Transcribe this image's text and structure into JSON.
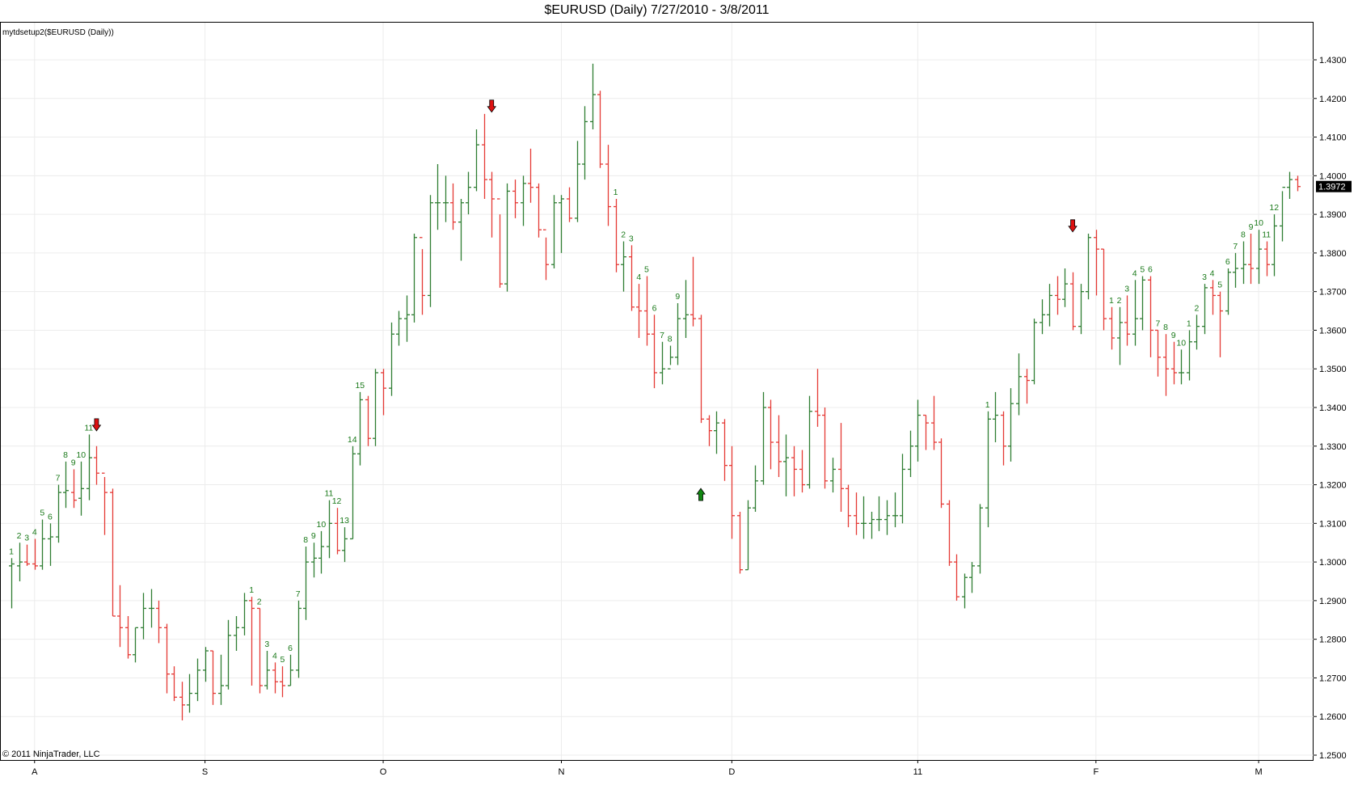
{
  "chart_data": {
    "type": "ohlc-bar",
    "title": "$EURUSD (Daily)  7/27/2010 - 3/8/2011",
    "indicator_label": "mytdsetup2($EURUSD (Daily))",
    "copyright": "© 2011 NinjaTrader, LLC",
    "last_price_label": "1.3972",
    "ylim": [
      1.245,
      1.435
    ],
    "y_ticks": [
      "1.2500",
      "1.2600",
      "1.2700",
      "1.2800",
      "1.2900",
      "1.3000",
      "1.3100",
      "1.3200",
      "1.3300",
      "1.3400",
      "1.3500",
      "1.3600",
      "1.3700",
      "1.3800",
      "1.3900",
      "1.4000",
      "1.4100",
      "1.4200",
      "1.4300"
    ],
    "x_ticks": [
      {
        "label": "A",
        "index": 3
      },
      {
        "label": "S",
        "index": 25
      },
      {
        "label": "O",
        "index": 48
      },
      {
        "label": "N",
        "index": 71
      },
      {
        "label": "D",
        "index": 93
      },
      {
        "label": "11",
        "index": 117
      },
      {
        "label": "F",
        "index": 140
      },
      {
        "label": "M",
        "index": 161
      }
    ],
    "bars": [
      [
        1.299,
        1.301,
        1.288,
        1.2995
      ],
      [
        1.299,
        1.305,
        1.295,
        1.3
      ],
      [
        1.3,
        1.3045,
        1.299,
        1.2995
      ],
      [
        1.2995,
        1.306,
        1.298,
        1.299
      ],
      [
        1.299,
        1.311,
        1.298,
        1.306
      ],
      [
        1.306,
        1.31,
        1.299,
        1.3065
      ],
      [
        1.3065,
        1.32,
        1.305,
        1.318
      ],
      [
        1.318,
        1.326,
        1.314,
        1.3185
      ],
      [
        1.318,
        1.324,
        1.314,
        1.316
      ],
      [
        1.3165,
        1.326,
        1.312,
        1.319
      ],
      [
        1.319,
        1.333,
        1.316,
        1.327
      ],
      [
        1.327,
        1.33,
        1.32,
        1.323
      ],
      [
        1.323,
        1.322,
        1.307,
        1.318
      ],
      [
        1.318,
        1.319,
        1.286,
        1.286
      ],
      [
        1.286,
        1.294,
        1.278,
        1.283
      ],
      [
        1.283,
        1.286,
        1.275,
        1.276
      ],
      [
        1.276,
        1.283,
        1.274,
        1.283
      ],
      [
        1.283,
        1.292,
        1.28,
        1.288
      ],
      [
        1.288,
        1.293,
        1.283,
        1.288
      ],
      [
        1.288,
        1.29,
        1.279,
        1.283
      ],
      [
        1.283,
        1.284,
        1.266,
        1.271
      ],
      [
        1.271,
        1.273,
        1.264,
        1.265
      ],
      [
        1.265,
        1.269,
        1.259,
        1.263
      ],
      [
        1.263,
        1.271,
        1.261,
        1.266
      ],
      [
        1.266,
        1.275,
        1.264,
        1.272
      ],
      [
        1.272,
        1.278,
        1.269,
        1.277
      ],
      [
        1.277,
        1.277,
        1.263,
        1.266
      ],
      [
        1.266,
        1.276,
        1.263,
        1.268
      ],
      [
        1.268,
        1.285,
        1.267,
        1.281
      ],
      [
        1.281,
        1.286,
        1.277,
        1.283
      ],
      [
        1.283,
        1.292,
        1.281,
        1.29
      ],
      [
        1.29,
        1.291,
        1.268,
        1.288
      ],
      [
        1.288,
        1.288,
        1.266,
        1.268
      ],
      [
        1.268,
        1.277,
        1.267,
        1.272
      ],
      [
        1.272,
        1.274,
        1.266,
        1.269
      ],
      [
        1.269,
        1.273,
        1.265,
        1.268
      ],
      [
        1.268,
        1.276,
        1.268,
        1.272
      ],
      [
        1.272,
        1.29,
        1.27,
        1.288
      ],
      [
        1.288,
        1.304,
        1.285,
        1.3
      ],
      [
        1.3,
        1.305,
        1.296,
        1.301
      ],
      [
        1.301,
        1.308,
        1.297,
        1.304
      ],
      [
        1.304,
        1.316,
        1.301,
        1.31
      ],
      [
        1.31,
        1.314,
        1.302,
        1.303
      ],
      [
        1.303,
        1.309,
        1.3,
        1.306
      ],
      [
        1.306,
        1.33,
        1.306,
        1.328
      ],
      [
        1.328,
        1.344,
        1.325,
        1.342
      ],
      [
        1.342,
        1.343,
        1.33,
        1.332
      ],
      [
        1.332,
        1.35,
        1.33,
        1.349
      ],
      [
        1.349,
        1.35,
        1.338,
        1.345
      ],
      [
        1.345,
        1.362,
        1.343,
        1.359
      ],
      [
        1.359,
        1.365,
        1.356,
        1.363
      ],
      [
        1.363,
        1.369,
        1.357,
        1.364
      ],
      [
        1.364,
        1.385,
        1.362,
        1.384
      ],
      [
        1.384,
        1.381,
        1.364,
        1.369
      ],
      [
        1.369,
        1.395,
        1.366,
        1.393
      ],
      [
        1.393,
        1.403,
        1.386,
        1.393
      ],
      [
        1.393,
        1.4,
        1.388,
        1.393
      ],
      [
        1.393,
        1.398,
        1.386,
        1.388
      ],
      [
        1.388,
        1.394,
        1.378,
        1.393
      ],
      [
        1.393,
        1.401,
        1.39,
        1.397
      ],
      [
        1.397,
        1.412,
        1.396,
        1.408
      ],
      [
        1.408,
        1.416,
        1.394,
        1.399
      ],
      [
        1.399,
        1.401,
        1.384,
        1.394
      ],
      [
        1.394,
        1.39,
        1.371,
        1.372
      ],
      [
        1.372,
        1.398,
        1.37,
        1.396
      ],
      [
        1.396,
        1.399,
        1.389,
        1.393
      ],
      [
        1.393,
        1.4,
        1.387,
        1.398
      ],
      [
        1.398,
        1.407,
        1.393,
        1.397
      ],
      [
        1.397,
        1.398,
        1.384,
        1.386
      ],
      [
        1.386,
        1.384,
        1.373,
        1.377
      ],
      [
        1.377,
        1.395,
        1.376,
        1.393
      ],
      [
        1.393,
        1.395,
        1.38,
        1.394
      ],
      [
        1.394,
        1.397,
        1.388,
        1.389
      ],
      [
        1.389,
        1.409,
        1.388,
        1.403
      ],
      [
        1.403,
        1.418,
        1.399,
        1.414
      ],
      [
        1.414,
        1.429,
        1.412,
        1.421
      ],
      [
        1.421,
        1.422,
        1.402,
        1.403
      ],
      [
        1.403,
        1.408,
        1.387,
        1.392
      ],
      [
        1.392,
        1.394,
        1.375,
        1.377
      ],
      [
        1.377,
        1.383,
        1.37,
        1.379
      ],
      [
        1.379,
        1.382,
        1.365,
        1.366
      ],
      [
        1.366,
        1.372,
        1.358,
        1.365
      ],
      [
        1.365,
        1.374,
        1.356,
        1.359
      ],
      [
        1.359,
        1.364,
        1.345,
        1.349
      ],
      [
        1.349,
        1.357,
        1.346,
        1.35
      ],
      [
        1.35,
        1.356,
        1.351,
        1.353
      ],
      [
        1.353,
        1.367,
        1.351,
        1.363
      ],
      [
        1.363,
        1.373,
        1.358,
        1.364
      ],
      [
        1.364,
        1.379,
        1.361,
        1.363
      ],
      [
        1.363,
        1.364,
        1.336,
        1.337
      ],
      [
        1.337,
        1.338,
        1.33,
        1.334
      ],
      [
        1.334,
        1.339,
        1.328,
        1.336
      ],
      [
        1.336,
        1.337,
        1.321,
        1.325
      ],
      [
        1.325,
        1.33,
        1.306,
        1.312
      ],
      [
        1.312,
        1.313,
        1.297,
        1.298
      ],
      [
        1.298,
        1.316,
        1.298,
        1.314
      ],
      [
        1.314,
        1.325,
        1.313,
        1.321
      ],
      [
        1.321,
        1.344,
        1.32,
        1.34
      ],
      [
        1.34,
        1.342,
        1.324,
        1.331
      ],
      [
        1.331,
        1.338,
        1.322,
        1.326
      ],
      [
        1.326,
        1.333,
        1.317,
        1.327
      ],
      [
        1.327,
        1.33,
        1.317,
        1.324
      ],
      [
        1.324,
        1.329,
        1.318,
        1.32
      ],
      [
        1.32,
        1.343,
        1.319,
        1.339
      ],
      [
        1.339,
        1.35,
        1.335,
        1.338
      ],
      [
        1.338,
        1.34,
        1.319,
        1.321
      ],
      [
        1.321,
        1.327,
        1.318,
        1.324
      ],
      [
        1.324,
        1.336,
        1.313,
        1.319
      ],
      [
        1.319,
        1.32,
        1.309,
        1.312
      ],
      [
        1.312,
        1.318,
        1.307,
        1.31
      ],
      [
        1.31,
        1.317,
        1.306,
        1.31
      ],
      [
        1.31,
        1.313,
        1.306,
        1.311
      ],
      [
        1.311,
        1.317,
        1.308,
        1.311
      ],
      [
        1.311,
        1.316,
        1.307,
        1.312
      ],
      [
        1.312,
        1.318,
        1.309,
        1.312
      ],
      [
        1.312,
        1.328,
        1.31,
        1.324
      ],
      [
        1.324,
        1.334,
        1.322,
        1.33
      ],
      [
        1.33,
        1.342,
        1.326,
        1.338
      ],
      [
        1.338,
        1.338,
        1.329,
        1.336
      ],
      [
        1.336,
        1.343,
        1.329,
        1.331
      ],
      [
        1.331,
        1.332,
        1.314,
        1.315
      ],
      [
        1.315,
        1.316,
        1.299,
        1.3
      ],
      [
        1.3,
        1.302,
        1.29,
        1.291
      ],
      [
        1.291,
        1.297,
        1.288,
        1.296
      ],
      [
        1.296,
        1.3,
        1.292,
        1.299
      ],
      [
        1.299,
        1.315,
        1.297,
        1.314
      ],
      [
        1.314,
        1.339,
        1.309,
        1.337
      ],
      [
        1.337,
        1.344,
        1.331,
        1.338
      ],
      [
        1.338,
        1.339,
        1.325,
        1.33
      ],
      [
        1.33,
        1.345,
        1.326,
        1.341
      ],
      [
        1.341,
        1.354,
        1.338,
        1.348
      ],
      [
        1.348,
        1.35,
        1.341,
        1.347
      ],
      [
        1.347,
        1.363,
        1.346,
        1.362
      ],
      [
        1.362,
        1.368,
        1.359,
        1.364
      ],
      [
        1.364,
        1.372,
        1.361,
        1.369
      ],
      [
        1.369,
        1.374,
        1.364,
        1.368
      ],
      [
        1.368,
        1.376,
        1.366,
        1.372
      ],
      [
        1.372,
        1.375,
        1.36,
        1.361
      ],
      [
        1.361,
        1.372,
        1.359,
        1.37
      ],
      [
        1.37,
        1.385,
        1.368,
        1.384
      ],
      [
        1.384,
        1.386,
        1.369,
        1.381
      ],
      [
        1.381,
        1.381,
        1.36,
        1.363
      ],
      [
        1.363,
        1.366,
        1.355,
        1.358
      ],
      [
        1.358,
        1.366,
        1.351,
        1.362
      ],
      [
        1.362,
        1.369,
        1.356,
        1.359
      ],
      [
        1.359,
        1.373,
        1.356,
        1.363
      ],
      [
        1.363,
        1.374,
        1.36,
        1.373
      ],
      [
        1.373,
        1.374,
        1.353,
        1.36
      ],
      [
        1.36,
        1.36,
        1.348,
        1.353
      ],
      [
        1.353,
        1.359,
        1.343,
        1.35
      ],
      [
        1.35,
        1.357,
        1.346,
        1.349
      ],
      [
        1.349,
        1.355,
        1.346,
        1.349
      ],
      [
        1.349,
        1.36,
        1.347,
        1.357
      ],
      [
        1.357,
        1.364,
        1.355,
        1.361
      ],
      [
        1.361,
        1.372,
        1.359,
        1.371
      ],
      [
        1.371,
        1.373,
        1.364,
        1.369
      ],
      [
        1.369,
        1.37,
        1.353,
        1.365
      ],
      [
        1.365,
        1.376,
        1.364,
        1.375
      ],
      [
        1.375,
        1.38,
        1.371,
        1.376
      ],
      [
        1.376,
        1.383,
        1.372,
        1.377
      ],
      [
        1.377,
        1.385,
        1.372,
        1.376
      ],
      [
        1.376,
        1.386,
        1.372,
        1.381
      ],
      [
        1.381,
        1.383,
        1.374,
        1.377
      ],
      [
        1.377,
        1.39,
        1.374,
        1.387
      ],
      [
        1.387,
        1.396,
        1.383,
        1.397
      ],
      [
        1.397,
        1.401,
        1.394,
        1.399
      ],
      [
        1.399,
        1.4,
        1.396,
        1.3972
      ]
    ],
    "setup_labels": [
      {
        "text": "1",
        "index": 0
      },
      {
        "text": "2",
        "index": 1
      },
      {
        "text": "3",
        "index": 2
      },
      {
        "text": "4",
        "index": 3
      },
      {
        "text": "5",
        "index": 4
      },
      {
        "text": "6",
        "index": 5
      },
      {
        "text": "7",
        "index": 6
      },
      {
        "text": "8",
        "index": 7
      },
      {
        "text": "9",
        "index": 8
      },
      {
        "text": "10",
        "index": 9
      },
      {
        "text": "11",
        "index": 10
      },
      {
        "text": "1",
        "index": 31
      },
      {
        "text": "2",
        "index": 32
      },
      {
        "text": "3",
        "index": 33
      },
      {
        "text": "4",
        "index": 34
      },
      {
        "text": "5",
        "index": 35
      },
      {
        "text": "6",
        "index": 36
      },
      {
        "text": "7",
        "index": 37
      },
      {
        "text": "8",
        "index": 38
      },
      {
        "text": "9",
        "index": 39
      },
      {
        "text": "10",
        "index": 40
      },
      {
        "text": "11",
        "index": 41
      },
      {
        "text": "12",
        "index": 42
      },
      {
        "text": "13",
        "index": 43
      },
      {
        "text": "14",
        "index": 44
      },
      {
        "text": "15",
        "index": 45
      },
      {
        "text": "1",
        "index": 78
      },
      {
        "text": "2",
        "index": 79
      },
      {
        "text": "3",
        "index": 80
      },
      {
        "text": "4",
        "index": 81
      },
      {
        "text": "5",
        "index": 82
      },
      {
        "text": "6",
        "index": 83
      },
      {
        "text": "7",
        "index": 84
      },
      {
        "text": "8",
        "index": 85
      },
      {
        "text": "9",
        "index": 86
      },
      {
        "text": "1",
        "index": 126
      },
      {
        "text": "1",
        "index": 142
      },
      {
        "text": "2",
        "index": 143
      },
      {
        "text": "3",
        "index": 144
      },
      {
        "text": "4",
        "index": 145
      },
      {
        "text": "5",
        "index": 146
      },
      {
        "text": "6",
        "index": 147
      },
      {
        "text": "7",
        "index": 148
      },
      {
        "text": "8",
        "index": 149
      },
      {
        "text": "9",
        "index": 150
      },
      {
        "text": "10",
        "index": 151
      },
      {
        "text": "1",
        "index": 152
      },
      {
        "text": "2",
        "index": 153
      },
      {
        "text": "3",
        "index": 154
      },
      {
        "text": "4",
        "index": 155
      },
      {
        "text": "5",
        "index": 156
      },
      {
        "text": "6",
        "index": 157
      },
      {
        "text": "7",
        "index": 158
      },
      {
        "text": "8",
        "index": 159
      },
      {
        "text": "9",
        "index": 160
      },
      {
        "text": "10",
        "index": 161
      },
      {
        "text": "11",
        "index": 162
      },
      {
        "text": "12",
        "index": 163
      }
    ],
    "signal_arrows": [
      {
        "dir": "down",
        "index": 11,
        "price": 1.335
      },
      {
        "dir": "down",
        "index": 62,
        "price": 1.4175
      },
      {
        "dir": "up",
        "index": 89,
        "price": 1.318
      },
      {
        "dir": "down",
        "index": 137,
        "price": 1.3865
      }
    ],
    "colors": {
      "up_bar": "#2e7d32",
      "down_bar": "#e53935",
      "setup_label": "#1b7a1b",
      "grid": "#ececec",
      "arrow_down": "#dd1111",
      "arrow_up": "#118811",
      "last_price_bg": "#000000",
      "last_price_fg": "#ffffff"
    },
    "grid": true,
    "ylabel_position": "right"
  }
}
